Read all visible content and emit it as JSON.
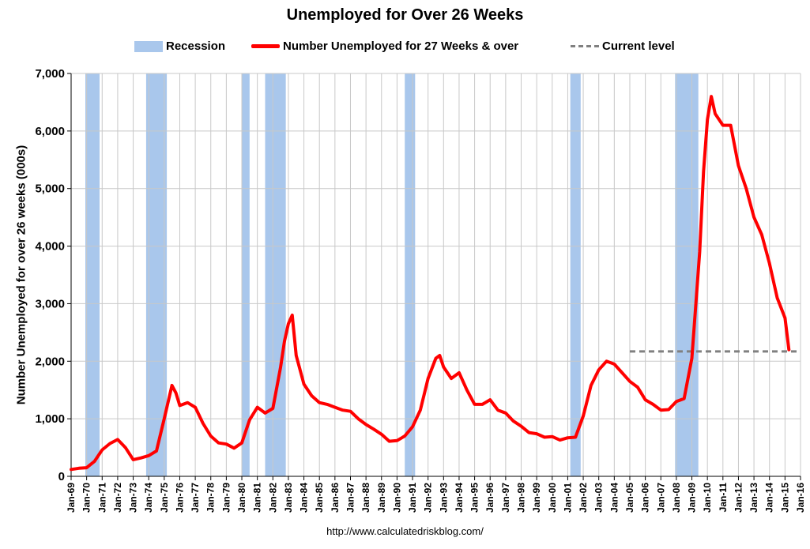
{
  "colors": {
    "recession": "#a9c7ec",
    "series": "#ff0000",
    "current_level": "#808080",
    "grid": "#c8c8c8"
  },
  "chart_data": {
    "type": "line",
    "title": "Unemployed for Over 26 Weeks",
    "xlabel": "",
    "ylabel": "Number Unemployed for over 26 weeks (000s)",
    "source": "http://www.calculatedriskblog.com/",
    "xlim": [
      "Jan-69",
      "Jan-16"
    ],
    "ylim": [
      0,
      7000
    ],
    "x_ticks": [
      "Jan-69",
      "Jan-70",
      "Jan-71",
      "Jan-72",
      "Jan-73",
      "Jan-74",
      "Jan-75",
      "Jan-76",
      "Jan-77",
      "Jan-78",
      "Jan-79",
      "Jan-80",
      "Jan-81",
      "Jan-82",
      "Jan-83",
      "Jan-84",
      "Jan-85",
      "Jan-86",
      "Jan-87",
      "Jan-88",
      "Jan-89",
      "Jan-90",
      "Jan-91",
      "Jan-92",
      "Jan-93",
      "Jan-94",
      "Jan-95",
      "Jan-96",
      "Jan-97",
      "Jan-98",
      "Jan-99",
      "Jan-00",
      "Jan-01",
      "Jan-02",
      "Jan-03",
      "Jan-04",
      "Jan-05",
      "Jan-06",
      "Jan-07",
      "Jan-08",
      "Jan-09",
      "Jan-10",
      "Jan-11",
      "Jan-12",
      "Jan-13",
      "Jan-14",
      "Jan-15",
      "Jan-16"
    ],
    "y_ticks": [
      0,
      1000,
      2000,
      3000,
      4000,
      5000,
      6000,
      7000
    ],
    "y_tick_labels": [
      "0",
      "1,000",
      "2,000",
      "3,000",
      "4,000",
      "5,000",
      "6,000",
      "7,000"
    ],
    "grid": true,
    "legend_position": "top",
    "legend": [
      "Recession",
      "Number Unemployed for 27 Weeks & over",
      "Current level"
    ],
    "recessions": [
      [
        "Dec-69",
        "Nov-70"
      ],
      [
        "Nov-73",
        "Mar-75"
      ],
      [
        "Jan-80",
        "Jul-80"
      ],
      [
        "Jul-81",
        "Nov-82"
      ],
      [
        "Jul-90",
        "Mar-91"
      ],
      [
        "Mar-01",
        "Nov-01"
      ],
      [
        "Dec-07",
        "Jun-09"
      ]
    ],
    "current_level": {
      "value": 2170,
      "from": "Jan-05",
      "to": "Jan-16"
    },
    "series": [
      {
        "name": "Number Unemployed for 27 Weeks & over",
        "x": [
          "Jan-69",
          "Jul-69",
          "Jan-70",
          "Jul-70",
          "Jan-71",
          "Jul-71",
          "Jan-72",
          "Jul-72",
          "Jan-73",
          "Jul-73",
          "Jan-74",
          "Jul-74",
          "Jan-75",
          "Jul-75",
          "Oct-75",
          "Jan-76",
          "Jul-76",
          "Jan-77",
          "Jul-77",
          "Jan-78",
          "Jul-78",
          "Jan-79",
          "Jul-79",
          "Jan-80",
          "Jul-80",
          "Jan-81",
          "Jul-81",
          "Jan-82",
          "Jul-82",
          "Oct-82",
          "Jan-83",
          "Apr-83",
          "Jul-83",
          "Jan-84",
          "Jul-84",
          "Jan-85",
          "Jul-85",
          "Jan-86",
          "Jul-86",
          "Jan-87",
          "Jul-87",
          "Jan-88",
          "Jul-88",
          "Jan-89",
          "Jul-89",
          "Jan-90",
          "Jul-90",
          "Jan-91",
          "Jul-91",
          "Jan-92",
          "Jul-92",
          "Oct-92",
          "Jan-93",
          "Jul-93",
          "Jan-94",
          "Jul-94",
          "Jan-95",
          "Jul-95",
          "Jan-96",
          "Jul-96",
          "Jan-97",
          "Jul-97",
          "Jan-98",
          "Jul-98",
          "Jan-99",
          "Jul-99",
          "Jan-00",
          "Jul-00",
          "Jan-01",
          "Jul-01",
          "Jan-02",
          "Jul-02",
          "Jan-03",
          "Jul-03",
          "Jan-04",
          "Jul-04",
          "Jan-05",
          "Jul-05",
          "Jan-06",
          "Jul-06",
          "Jan-07",
          "Jul-07",
          "Jan-08",
          "Jul-08",
          "Jan-09",
          "Jul-09",
          "Oct-09",
          "Jan-10",
          "Apr-10",
          "Jul-10",
          "Jan-11",
          "Jul-11",
          "Jan-12",
          "Jul-12",
          "Jan-13",
          "Jul-13",
          "Jan-14",
          "Jul-14",
          "Jan-15",
          "Apr-15"
        ],
        "y": [
          120,
          140,
          150,
          260,
          460,
          570,
          640,
          500,
          290,
          320,
          360,
          440,
          1000,
          1580,
          1450,
          1230,
          1280,
          1200,
          920,
          700,
          580,
          560,
          490,
          580,
          980,
          1200,
          1100,
          1180,
          1900,
          2350,
          2650,
          2800,
          2100,
          1600,
          1400,
          1280,
          1250,
          1200,
          1150,
          1130,
          1000,
          900,
          820,
          730,
          610,
          620,
          700,
          860,
          1150,
          1700,
          2050,
          2100,
          1900,
          1700,
          1800,
          1500,
          1250,
          1250,
          1330,
          1150,
          1100,
          960,
          870,
          760,
          740,
          680,
          690,
          630,
          670,
          680,
          1050,
          1580,
          1850,
          2000,
          1950,
          1800,
          1650,
          1550,
          1330,
          1250,
          1150,
          1160,
          1300,
          1350,
          2050,
          3900,
          5300,
          6200,
          6600,
          6300,
          6100,
          6100,
          5400,
          5000,
          4500,
          4200,
          3700,
          3100,
          2750,
          2200
        ]
      }
    ]
  }
}
